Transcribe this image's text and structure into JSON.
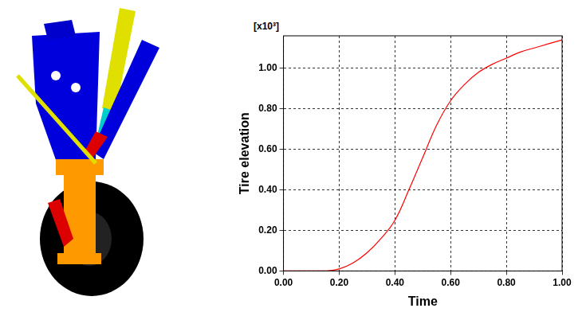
{
  "chart_data": {
    "type": "line",
    "x_label": "Time",
    "y_label": "Tire elevation",
    "annotations": [
      "[x10³]"
    ],
    "x": [
      0.0,
      0.05,
      0.1,
      0.15,
      0.2,
      0.25,
      0.3,
      0.35,
      0.4,
      0.45,
      0.5,
      0.55,
      0.6,
      0.65,
      0.7,
      0.75,
      0.8,
      0.85,
      0.9,
      0.95,
      1.0
    ],
    "series": [
      {
        "name": "Tire elevation",
        "color": "#ff0000",
        "values": [
          0.0,
          0.0,
          0.0,
          0.0,
          0.01,
          0.04,
          0.09,
          0.16,
          0.25,
          0.4,
          0.56,
          0.72,
          0.84,
          0.92,
          0.98,
          1.02,
          1.05,
          1.08,
          1.1,
          1.12,
          1.14
        ]
      }
    ],
    "xlim": [
      0,
      1
    ],
    "xticks": [
      {
        "value": 0,
        "label": "0.00"
      },
      {
        "value": 0.2,
        "label": "0.20"
      },
      {
        "value": 0.4,
        "label": "0.40"
      },
      {
        "value": 0.6,
        "label": "0.60"
      },
      {
        "value": 0.8,
        "label": "0.80"
      },
      {
        "value": 1,
        "label": "1.00"
      }
    ],
    "ylim": [
      0,
      1.16
    ],
    "yticks": [
      {
        "value": 0,
        "label": "0.00"
      },
      {
        "value": 0.2,
        "label": "0.20"
      },
      {
        "value": 0.4,
        "label": "0.40"
      },
      {
        "value": 0.6,
        "label": "0.60"
      },
      {
        "value": 0.8,
        "label": "0.80"
      },
      {
        "value": 1,
        "label": "1.00"
      }
    ],
    "grid": true
  }
}
